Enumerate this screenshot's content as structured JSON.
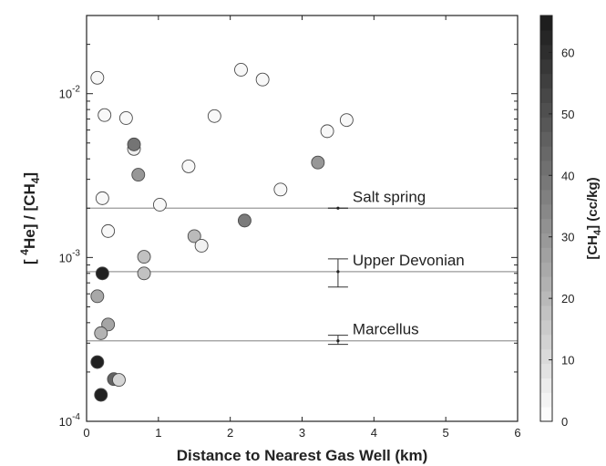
{
  "chart_data": {
    "type": "scatter",
    "xlabel": "Distance to Nearest Gas Well (km)",
    "ylabel_parts": [
      "[ ",
      "4",
      "He] / [CH",
      "4",
      "]"
    ],
    "x_ticks": [
      "0",
      "1",
      "2",
      "3",
      "4",
      "5",
      "6"
    ],
    "xlim": [
      0,
      6
    ],
    "yscale": "log",
    "ylim": [
      0.0001,
      0.03
    ],
    "y_ticks": [
      {
        "value": 0.01,
        "base": "10",
        "exp": "-2"
      },
      {
        "value": 0.001,
        "base": "10",
        "exp": "-3"
      },
      {
        "value": 0.0001,
        "base": "10",
        "exp": "-4"
      }
    ],
    "colorbar": {
      "title_parts": [
        "[CH",
        "4",
        "] (cc/kg)"
      ],
      "range": [
        0,
        66
      ],
      "ticks": [
        "0",
        "10",
        "20",
        "30",
        "40",
        "50",
        "60"
      ],
      "colormap": "gray-reversed"
    },
    "reference_lines": [
      {
        "label": "Salt spring",
        "y": 0.002,
        "err_low": 0.002,
        "err_high": 0.002
      },
      {
        "label": "Upper Devonian",
        "y": 0.00082,
        "err_low": 0.00066,
        "err_high": 0.00098
      },
      {
        "label": "Marcellus",
        "y": 0.00031,
        "err_low": 0.000295,
        "err_high": 0.000335
      }
    ],
    "error_bar_x": 3.5,
    "points": [
      {
        "x": 0.15,
        "y": 0.0125,
        "c": 2
      },
      {
        "x": 0.25,
        "y": 0.0074,
        "c": 2
      },
      {
        "x": 0.55,
        "y": 0.0071,
        "c": 2
      },
      {
        "x": 0.66,
        "y": 0.0046,
        "c": 5
      },
      {
        "x": 0.66,
        "y": 0.0049,
        "c": 40
      },
      {
        "x": 0.72,
        "y": 0.0032,
        "c": 30
      },
      {
        "x": 0.22,
        "y": 0.0023,
        "c": 2
      },
      {
        "x": 0.3,
        "y": 0.00145,
        "c": 2
      },
      {
        "x": 1.02,
        "y": 0.0021,
        "c": 2
      },
      {
        "x": 1.42,
        "y": 0.0036,
        "c": 2
      },
      {
        "x": 1.78,
        "y": 0.0073,
        "c": 2
      },
      {
        "x": 2.15,
        "y": 0.014,
        "c": 2
      },
      {
        "x": 2.45,
        "y": 0.0122,
        "c": 2
      },
      {
        "x": 2.7,
        "y": 0.0026,
        "c": 2
      },
      {
        "x": 3.22,
        "y": 0.0038,
        "c": 30
      },
      {
        "x": 3.35,
        "y": 0.0059,
        "c": 2
      },
      {
        "x": 3.62,
        "y": 0.0069,
        "c": 2
      },
      {
        "x": 2.2,
        "y": 0.00168,
        "c": 38
      },
      {
        "x": 1.5,
        "y": 0.00135,
        "c": 20
      },
      {
        "x": 1.6,
        "y": 0.00118,
        "c": 4
      },
      {
        "x": 0.8,
        "y": 0.00101,
        "c": 18
      },
      {
        "x": 0.8,
        "y": 0.0008,
        "c": 18
      },
      {
        "x": 0.22,
        "y": 0.0008,
        "c": 64
      },
      {
        "x": 0.15,
        "y": 0.00058,
        "c": 25
      },
      {
        "x": 0.3,
        "y": 0.00039,
        "c": 26
      },
      {
        "x": 0.2,
        "y": 0.000345,
        "c": 22
      },
      {
        "x": 0.15,
        "y": 0.00023,
        "c": 64
      },
      {
        "x": 0.38,
        "y": 0.000181,
        "c": 45
      },
      {
        "x": 0.45,
        "y": 0.000179,
        "c": 12
      },
      {
        "x": 0.2,
        "y": 0.000145,
        "c": 64
      }
    ]
  }
}
